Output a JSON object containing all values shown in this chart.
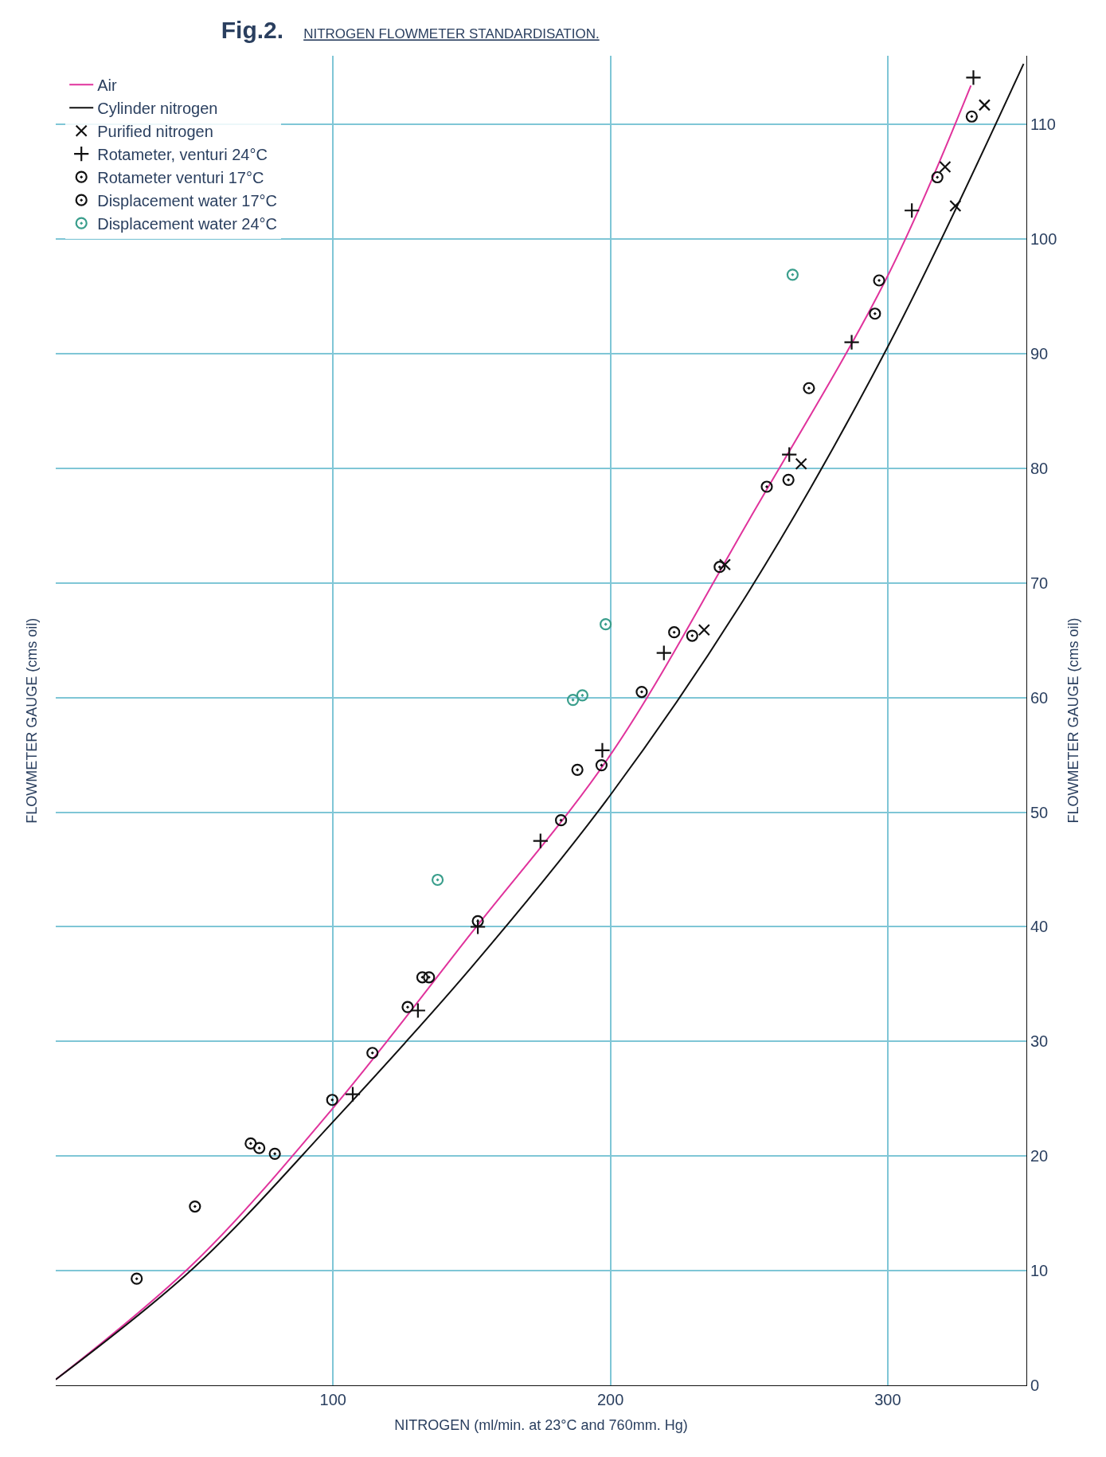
{
  "chart_data": {
    "type": "scatter",
    "title": "Fig.2.",
    "subtitle": "NITROGEN FLOWMETER STANDARDISATION.",
    "xlabel": "NITROGEN (ml/min. at 23°C and 760mm. Hg)",
    "ylabel": "FLOWMETER GAUGE (cms oil)",
    "annotations": [
      "FLOWMETER GAUGE (cms oil)"
    ],
    "xlim": [
      0,
      350
    ],
    "xticks": [
      100,
      200,
      300
    ],
    "ylim": [
      0,
      116
    ],
    "yticks": [
      0,
      10,
      20,
      30,
      40,
      50,
      60,
      70,
      80,
      90,
      100,
      110
    ],
    "grid": true,
    "legend": "top left",
    "series": [
      {
        "name": "Air",
        "type": "line",
        "color": "#e0339c",
        "marker": "none",
        "x": [
          0,
          50,
          100,
          150,
          200,
          250,
          300,
          330
        ],
        "values": [
          0.5,
          10.7,
          24.2,
          39.5,
          55,
          75.5,
          96.8,
          113.4
        ]
      },
      {
        "name": "Cylinder nitrogen",
        "type": "line",
        "color": "#111111",
        "marker": "none",
        "x": [
          0,
          50,
          100,
          150,
          200,
          250,
          300,
          349
        ],
        "values": [
          0.5,
          10.3,
          23,
          36.5,
          51.5,
          69.3,
          90.6,
          115.3
        ]
      },
      {
        "name": "Purified nitrogen",
        "color": "#111111",
        "marker": "x",
        "x": [
          233.8,
          241.3,
          268.8,
          320.7,
          324.4,
          334.9
        ],
        "values": [
          65.9,
          71.6,
          80.4,
          106.3,
          102.9,
          111.7
        ]
      },
      {
        "name": "Rotameter, venturi 24°C",
        "color": "#111111",
        "marker": "cross",
        "x": [
          107.1,
          130.6,
          152.2,
          174.8,
          197.1,
          219.3,
          264.5,
          287,
          308.7,
          330.9
        ],
        "values": [
          25.4,
          32.7,
          40,
          47.5,
          55.4,
          63.9,
          81.2,
          91,
          102.5,
          114.1
        ]
      },
      {
        "name": "Rotameter venturi 17°C",
        "color": "#111111",
        "marker": "circle",
        "x": [
          196.8,
          264.2,
          295.4
        ],
        "values": [
          54.1,
          79,
          93.5
        ]
      },
      {
        "name": "Displacement water 17°C",
        "color": "#111111",
        "marker": "circle",
        "x": [
          29.2,
          50.2,
          70.3,
          73.4,
          79,
          99.7,
          114.2,
          126.9,
          132.2,
          134.6,
          152.2,
          182.2,
          188.1,
          211.3,
          223,
          229.5,
          239.4,
          256.4,
          271.6,
          296.9,
          317.9,
          330.3
        ],
        "values": [
          9.3,
          15.6,
          21.1,
          20.7,
          20.2,
          24.9,
          29,
          33,
          35.6,
          35.6,
          40.5,
          49.3,
          53.7,
          60.5,
          65.7,
          65.4,
          71.4,
          78.4,
          87,
          96.4,
          105.4,
          110.7
        ]
      },
      {
        "name": "Displacement water 24°C",
        "color": "#3a9e8c",
        "marker": "circle",
        "x": [
          137.7,
          186.5,
          189.9,
          198.3,
          265.7
        ],
        "values": [
          44.1,
          59.8,
          60.2,
          66.4,
          96.9
        ]
      }
    ]
  }
}
